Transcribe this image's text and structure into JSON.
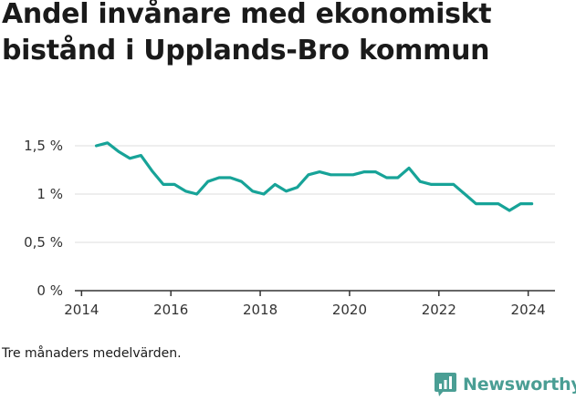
{
  "title_lines": [
    "Andel invånare med ekonomiskt",
    "bistånd i Upplands-Bro kommun"
  ],
  "note": "Tre månaders medelvärden.",
  "brand": {
    "name": "Newsworthy",
    "color": "#4a9e94",
    "icon": "chart-bubble-icon"
  },
  "chart_data": {
    "type": "line",
    "title": "Andel invånare med ekonomiskt bistånd i Upplands-Bro kommun",
    "xlabel": "",
    "ylabel": "",
    "xlim": [
      2013.85,
      2024.6
    ],
    "ylim": [
      0,
      1.5
    ],
    "x_ticks": [
      2014,
      2016,
      2018,
      2020,
      2022,
      2024
    ],
    "x_tick_labels": [
      "2014",
      "2016",
      "2018",
      "2020",
      "2022",
      "2024"
    ],
    "y_ticks": [
      0,
      0.5,
      1,
      1.5
    ],
    "y_tick_labels": [
      "0 %",
      "0,5 %",
      "1 %",
      "1,5 %"
    ],
    "grid": "horizontal",
    "line_color": "#17a398",
    "series": [
      {
        "x": [
          2014.33,
          2014.58,
          2014.83,
          2015.08,
          2015.33,
          2015.58,
          2015.83,
          2016.08,
          2016.33,
          2016.58,
          2016.83,
          2017.08,
          2017.33,
          2017.58,
          2017.83,
          2018.08,
          2018.33,
          2018.58,
          2018.83,
          2019.08,
          2019.33,
          2019.58,
          2019.83,
          2020.08,
          2020.33,
          2020.58,
          2020.83,
          2021.08,
          2021.33,
          2021.58,
          2021.83,
          2022.08,
          2022.33,
          2022.58,
          2022.83,
          2023.08,
          2023.33,
          2023.58,
          2023.83,
          2024.08
        ],
        "values": [
          1.5,
          1.53,
          1.44,
          1.37,
          1.4,
          1.24,
          1.1,
          1.1,
          1.03,
          1.0,
          1.13,
          1.17,
          1.17,
          1.13,
          1.03,
          1.0,
          1.1,
          1.03,
          1.07,
          1.2,
          1.23,
          1.2,
          1.2,
          1.2,
          1.23,
          1.23,
          1.17,
          1.17,
          1.27,
          1.13,
          1.1,
          1.1,
          1.1,
          1.0,
          0.9,
          0.9,
          0.9,
          0.83,
          0.9,
          0.9
        ]
      }
    ]
  }
}
